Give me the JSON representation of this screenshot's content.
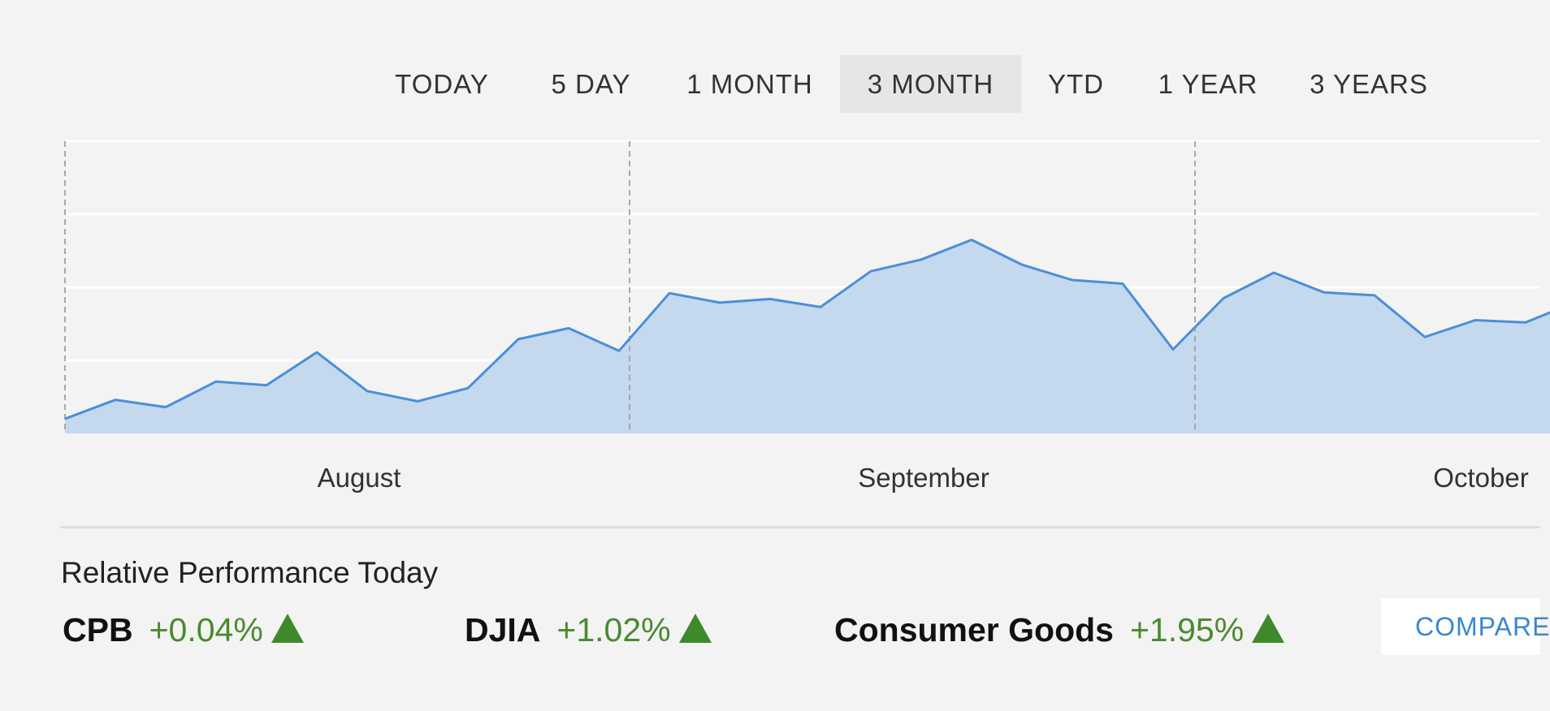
{
  "tabs": [
    {
      "label": "TODAY",
      "active": false
    },
    {
      "label": "5 DAY",
      "active": false
    },
    {
      "label": "1 MONTH",
      "active": false
    },
    {
      "label": "3 MONTH",
      "active": true
    },
    {
      "label": "YTD",
      "active": false
    },
    {
      "label": "1 YEAR",
      "active": false
    },
    {
      "label": "3 YEARS",
      "active": false
    }
  ],
  "chart_data": {
    "type": "area",
    "x_tick_labels": [
      "August",
      "September",
      "October"
    ],
    "y_tick_labels": [],
    "grid": true,
    "values": [
      2,
      4.6,
      3.6,
      7.1,
      6.6,
      11.1,
      5.8,
      4.4,
      6.2,
      12.9,
      14.4,
      11.3,
      19.2,
      17.9,
      18.4,
      17.3,
      22.2,
      23.8,
      26.5,
      23.1,
      21,
      20.5,
      11.5,
      18.5,
      22,
      19.3,
      18.9,
      13.2,
      15.5,
      15.2,
      18
    ],
    "series_color": "#4a8fd8",
    "fill_color": "#c4d8ee",
    "ylim": [
      0,
      40
    ]
  },
  "relative_performance": {
    "title": "Relative Performance Today",
    "items": [
      {
        "name": "CPB",
        "change": "+0.04%",
        "direction": "up"
      },
      {
        "name": "DJIA",
        "change": "+1.02%",
        "direction": "up"
      },
      {
        "name": "Consumer Goods",
        "change": "+1.95%",
        "direction": "up"
      }
    ],
    "compare_label": "COMPARE"
  },
  "colors": {
    "positive": "#4a8a2f",
    "link": "#3d86cc",
    "background": "#f3f3f3"
  }
}
